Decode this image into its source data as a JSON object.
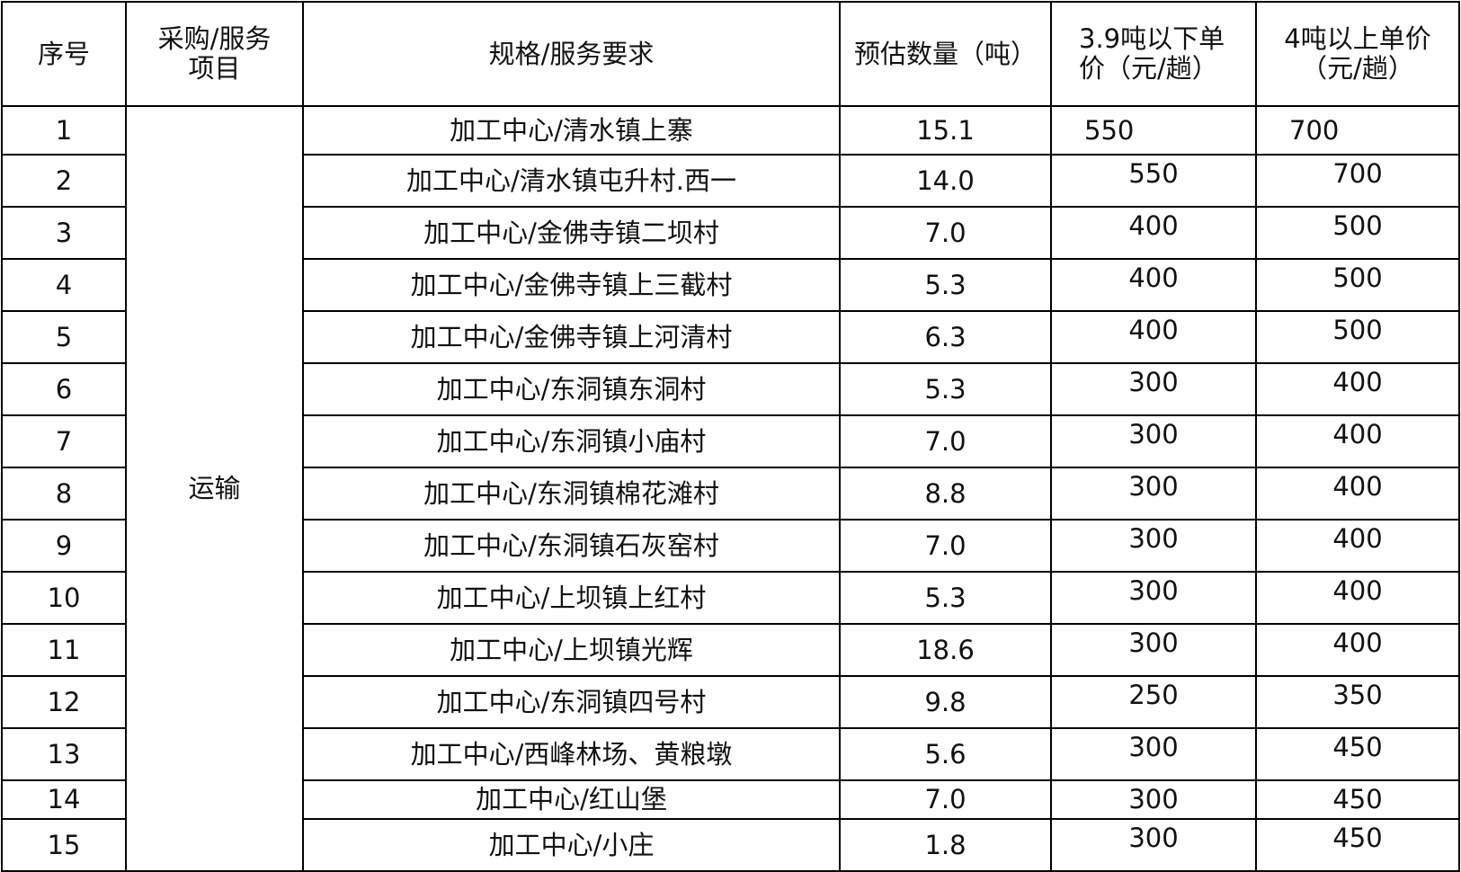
{
  "headers": [
    "序号",
    "采购/服务项目",
    "规格/服务要求",
    "预估数量（吨）",
    "3.9吨以下单价（元/趟）",
    "4吨以上单价（元/趟）"
  ],
  "header_lines": {
    "c1": [
      "采购/服务",
      "项目"
    ],
    "c4": [
      "3.9吨以下单",
      "价（元/趟）"
    ],
    "c5": [
      "4吨以上单价",
      "（元/趟）"
    ]
  },
  "item": "运输",
  "rows": [
    {
      "no": "1",
      "spec": "加工中心/清水镇上寨",
      "qty": "15.1",
      "p1": "550",
      "p2": "700"
    },
    {
      "no": "2",
      "spec": "加工中心/清水镇屯升村.西一",
      "qty": "14.0",
      "p1": "550",
      "p2": "700"
    },
    {
      "no": "3",
      "spec": "加工中心/金佛寺镇二坝村",
      "qty": "7.0",
      "p1": "400",
      "p2": "500"
    },
    {
      "no": "4",
      "spec": "加工中心/金佛寺镇上三截村",
      "qty": "5.3",
      "p1": "400",
      "p2": "500"
    },
    {
      "no": "5",
      "spec": "加工中心/金佛寺镇上河清村",
      "qty": "6.3",
      "p1": "400",
      "p2": "500"
    },
    {
      "no": "6",
      "spec": "加工中心/东洞镇东洞村",
      "qty": "5.3",
      "p1": "300",
      "p2": "400"
    },
    {
      "no": "7",
      "spec": "加工中心/东洞镇小庙村",
      "qty": "7.0",
      "p1": "300",
      "p2": "400"
    },
    {
      "no": "8",
      "spec": "加工中心/东洞镇棉花滩村",
      "qty": "8.8",
      "p1": "300",
      "p2": "400"
    },
    {
      "no": "9",
      "spec": "加工中心/东洞镇石灰窑村",
      "qty": "7.0",
      "p1": "300",
      "p2": "400"
    },
    {
      "no": "10",
      "spec": "加工中心/上坝镇上红村",
      "qty": "5.3",
      "p1": "300",
      "p2": "400"
    },
    {
      "no": "11",
      "spec": "加工中心/上坝镇光辉",
      "qty": "18.6",
      "p1": "300",
      "p2": "400"
    },
    {
      "no": "12",
      "spec": "加工中心/东洞镇四号村",
      "qty": "9.8",
      "p1": "250",
      "p2": "350"
    },
    {
      "no": "13",
      "spec": "加工中心/西峰林场、黄粮墩",
      "qty": "5.6",
      "p1": "300",
      "p2": "450"
    },
    {
      "no": "14",
      "spec": "加工中心/红山堡",
      "qty": "7.0",
      "p1": "300",
      "p2": "450"
    },
    {
      "no": "15",
      "spec": "加工中心/小庄",
      "qty": "1.8",
      "p1": "300",
      "p2": "450"
    }
  ]
}
